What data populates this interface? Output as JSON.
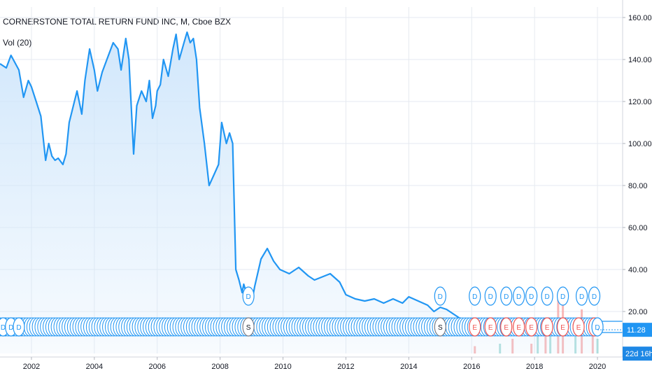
{
  "legend": {
    "title": "CORNERSTONE TOTAL RETURN FUND INC, M, Cboe BZX",
    "volume": "Vol (20)"
  },
  "price_axis": {
    "last_price": "11.28",
    "countdown": "22d 16h"
  },
  "colors": {
    "line": "#2196f3",
    "area": "#cfe6fb",
    "grid": "#e6eaf0",
    "price_label_bg": "#2196f3",
    "countdown_bg": "#1e88e5",
    "vol_up": "#9bd7d3",
    "vol_down": "#f6a6a6",
    "dividend_ring": "#2196f3",
    "earnings_ring": "#ef5350"
  },
  "chart_data": {
    "type": "area",
    "title": "CORNERSTONE TOTAL RETURN FUND INC, M, Cboe BZX",
    "xlabel": "",
    "ylabel": "",
    "xlim": [
      2001.0,
      2020.8
    ],
    "ylim": [
      0,
      165
    ],
    "grid": true,
    "x_ticks": [
      "2002",
      "2004",
      "2006",
      "2008",
      "2010",
      "2012",
      "2014",
      "2016",
      "2018",
      "2020"
    ],
    "y_ticks": [
      "20.00",
      "40.00",
      "60.00",
      "80.00",
      "100.00",
      "120.00",
      "140.00",
      "160.00"
    ],
    "series": [
      {
        "x": [
          2001.0,
          2001.2,
          2001.35,
          2001.6,
          2001.75,
          2001.9,
          2002.0,
          2002.15,
          2002.3,
          2002.45,
          2002.55,
          2002.65,
          2002.75,
          2002.85,
          2003.0,
          2003.1,
          2003.2,
          2003.45,
          2003.6,
          2003.7,
          2003.85,
          2004.0,
          2004.1,
          2004.25,
          2004.4,
          2004.6,
          2004.75,
          2004.85,
          2005.0,
          2005.1,
          2005.15,
          2005.25,
          2005.35,
          2005.5,
          2005.65,
          2005.75,
          2005.85,
          2005.95,
          2006.0,
          2006.1,
          2006.2,
          2006.35,
          2006.5,
          2006.6,
          2006.7,
          2006.85,
          2006.95,
          2007.05,
          2007.15,
          2007.25,
          2007.35,
          2007.5,
          2007.65,
          2007.8,
          2007.95,
          2008.05,
          2008.2,
          2008.3,
          2008.4,
          2008.5,
          2008.6,
          2008.7,
          2008.75,
          2008.85,
          2009.0,
          2009.1,
          2009.3,
          2009.5,
          2009.7,
          2009.9,
          2010.2,
          2010.5,
          2010.8,
          2011.0,
          2011.5,
          2011.8,
          2012.0,
          2012.3,
          2012.6,
          2012.9,
          2013.2,
          2013.5,
          2013.8,
          2014.0,
          2014.3,
          2014.6,
          2014.8,
          2015.0,
          2015.2,
          2015.4,
          2015.6,
          2015.8,
          2016.0,
          2016.3,
          2016.6,
          2016.9,
          2017.2,
          2017.5,
          2017.8,
          2018.1,
          2018.4,
          2018.7,
          2019.0,
          2019.3,
          2019.6,
          2019.9,
          2020.0
        ],
        "y": [
          138,
          136,
          142,
          135,
          122,
          130,
          127,
          120,
          113,
          92,
          100,
          94,
          92,
          93,
          90,
          95,
          110,
          125,
          114,
          130,
          145,
          135,
          125,
          134,
          140,
          148,
          145,
          135,
          150,
          140,
          125,
          95,
          118,
          125,
          120,
          130,
          112,
          118,
          125,
          128,
          140,
          132,
          145,
          152,
          140,
          148,
          153,
          148,
          150,
          140,
          117,
          100,
          80,
          85,
          90,
          110,
          100,
          105,
          100,
          40,
          35,
          29,
          33,
          28,
          24,
          32,
          45,
          50,
          44,
          40,
          38,
          41,
          37,
          35,
          38,
          34,
          28,
          26,
          25,
          26,
          24,
          26,
          24,
          27,
          25,
          23,
          20,
          22,
          21,
          19,
          17,
          16,
          15,
          14,
          14,
          13,
          14,
          13,
          14,
          12,
          13,
          12,
          13,
          12,
          12,
          11.5,
          11.28
        ]
      }
    ],
    "volume": {
      "name": "Vol (20)",
      "x": [
        2016.1,
        2016.9,
        2017.3,
        2017.9,
        2018.1,
        2018.35,
        2018.5,
        2018.75,
        2018.9,
        2019.3,
        2019.5,
        2019.85,
        2020.0
      ],
      "values": [
        3,
        4,
        6,
        4,
        8,
        10,
        13,
        22,
        20,
        12,
        18,
        8,
        6
      ],
      "directions": [
        "down",
        "up",
        "down",
        "down",
        "up",
        "down",
        "up",
        "down",
        "down",
        "up",
        "down",
        "down",
        "up"
      ]
    },
    "events": {
      "stack_start": 2001.0,
      "stack_end": 2020.0,
      "stack_count": 222,
      "dividends": [
        2008.9,
        2015.0,
        2016.1,
        2016.6,
        2017.1,
        2017.5,
        2017.9,
        2018.4,
        2018.9,
        2019.5,
        2019.9
      ],
      "labeled_dividends": [
        "D",
        "D",
        "D"
      ],
      "labeled_dividends_x": [
        2001.1,
        2001.35,
        2001.6
      ],
      "splits_x": [
        2008.9,
        2015.0
      ],
      "splits_label": "S",
      "earnings_x": [
        2016.1,
        2016.6,
        2017.1,
        2017.5,
        2017.9,
        2018.4,
        2018.9,
        2019.4,
        2019.9
      ],
      "earnings_label": "E",
      "dividend_label": "D",
      "last_dividend_x": 2020.0
    }
  }
}
